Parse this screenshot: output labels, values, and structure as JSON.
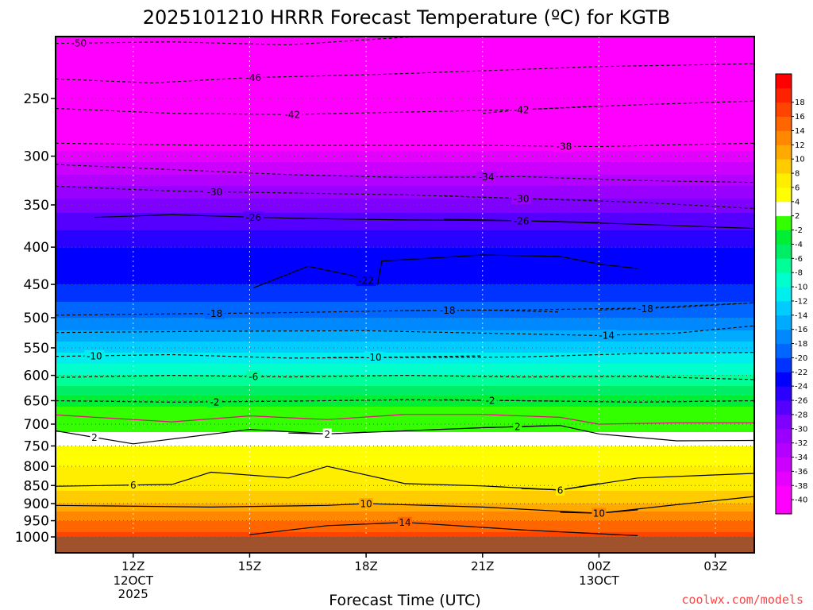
{
  "chart_data": {
    "type": "heatmap",
    "title": "2025101210 HRRR Forecast Temperature (ºC) for KGTB",
    "xlabel": "Forecast Time (UTC)",
    "ylabel": "",
    "credit": "coolwx.com/models",
    "y_scale": "log-pressure",
    "ylim": [
      1000,
      200
    ],
    "xlim_hours": [
      0,
      18
    ],
    "y_ticks": [
      250,
      300,
      350,
      400,
      450,
      500,
      550,
      600,
      650,
      700,
      750,
      800,
      850,
      900,
      950,
      1000
    ],
    "x_ticks": [
      {
        "hour": 2,
        "label": "12Z",
        "sub": [
          "12OCT",
          "2025"
        ]
      },
      {
        "hour": 5,
        "label": "15Z",
        "sub": []
      },
      {
        "hour": 8,
        "label": "18Z",
        "sub": []
      },
      {
        "hour": 11,
        "label": "21Z",
        "sub": []
      },
      {
        "hour": 14,
        "label": "00Z",
        "sub": [
          "13OCT"
        ]
      },
      {
        "hour": 17,
        "label": "03Z",
        "sub": []
      }
    ],
    "colorbar": {
      "levels": [
        -42,
        -40,
        -38,
        -36,
        -34,
        -32,
        -30,
        -28,
        -26,
        -24,
        -22,
        -20,
        -18,
        -16,
        -14,
        -12,
        -10,
        -8,
        -6,
        -4,
        -2,
        2,
        4,
        6,
        8,
        10,
        12,
        14,
        16,
        18,
        20
      ],
      "colors": [
        "#ff00ff",
        "#ff00ff",
        "#e600ff",
        "#cc00ff",
        "#b300ff",
        "#9900ff",
        "#8000ff",
        "#5500ff",
        "#2a00ff",
        "#0000ff",
        "#0033ff",
        "#0066ff",
        "#0088ff",
        "#00aaff",
        "#00ccff",
        "#00eeee",
        "#00ffcc",
        "#00ff99",
        "#00ee66",
        "#00ee33",
        "#33ff00",
        "#ffffff",
        "#ffff00",
        "#ffee00",
        "#ffcc00",
        "#ffaa00",
        "#ff8800",
        "#ff6600",
        "#ff4400",
        "#ff2200",
        "#ff0000"
      ],
      "tick_labels": [
        "18",
        "16",
        "14",
        "12",
        "10",
        "8",
        "6",
        "4",
        "2",
        "-2",
        "-4",
        "-6",
        "-8",
        "-10",
        "-12",
        "-14",
        "-16",
        "-18",
        "-20",
        "-22",
        "-24",
        "-26",
        "-28",
        "-30",
        "-32",
        "-34",
        "-36",
        "-38",
        "-40"
      ]
    },
    "temperature_profile": [
      {
        "hpa": 200,
        "temp_c": -58
      },
      {
        "hpa": 250,
        "temp_c": -47
      },
      {
        "hpa": 300,
        "temp_c": -37
      },
      {
        "hpa": 350,
        "temp_c": -29
      },
      {
        "hpa": 400,
        "temp_c": -24
      },
      {
        "hpa": 450,
        "temp_c": -22
      },
      {
        "hpa": 500,
        "temp_c": -18
      },
      {
        "hpa": 550,
        "temp_c": -13
      },
      {
        "hpa": 600,
        "temp_c": -8
      },
      {
        "hpa": 650,
        "temp_c": -3
      },
      {
        "hpa": 700,
        "temp_c": 1
      },
      {
        "hpa": 750,
        "temp_c": 4
      },
      {
        "hpa": 800,
        "temp_c": 6
      },
      {
        "hpa": 850,
        "temp_c": 7
      },
      {
        "hpa": 900,
        "temp_c": 10
      },
      {
        "hpa": 950,
        "temp_c": 14
      },
      {
        "hpa": 1000,
        "temp_c": 17
      }
    ],
    "isotherms": [
      {
        "temp_c": -50,
        "style": "dashed",
        "label_hour": 0.6,
        "points": [
          [
            0,
            210
          ],
          [
            3,
            209
          ],
          [
            6,
            211
          ],
          [
            9,
            206
          ],
          [
            12,
            203
          ],
          [
            15,
            200
          ],
          [
            18,
            202
          ]
        ]
      },
      {
        "temp_c": -46,
        "style": "dashed",
        "label_hour": 5.1,
        "points": [
          [
            0,
            235
          ],
          [
            2.5,
            238
          ],
          [
            5,
            234
          ],
          [
            8,
            232
          ],
          [
            11,
            229
          ],
          [
            14,
            226
          ],
          [
            18,
            224
          ]
        ]
      },
      {
        "temp_c": -42,
        "style": "dashed",
        "label_hour": 6.1,
        "points": [
          [
            0,
            258
          ],
          [
            3,
            262
          ],
          [
            6,
            263
          ],
          [
            9,
            261
          ],
          [
            12,
            259
          ],
          [
            15,
            255
          ],
          [
            18,
            252
          ]
        ]
      },
      {
        "temp_c": -42,
        "style": "dashed",
        "label_hour": 12.0,
        "points": [
          [
            11,
            262
          ],
          [
            12,
            259
          ],
          [
            14,
            256
          ]
        ]
      },
      {
        "temp_c": -38,
        "style": "dashed",
        "label_hour": 13.1,
        "points": [
          [
            0,
            288
          ],
          [
            4,
            290
          ],
          [
            8,
            290
          ],
          [
            11,
            290
          ],
          [
            14,
            291
          ],
          [
            18,
            288
          ]
        ]
      },
      {
        "temp_c": -34,
        "style": "dashed",
        "label_hour": 11.1,
        "points": [
          [
            0,
            308
          ],
          [
            3,
            313
          ],
          [
            6,
            318
          ],
          [
            9,
            321
          ],
          [
            12,
            320
          ],
          [
            15,
            324
          ],
          [
            18,
            326
          ]
        ]
      },
      {
        "temp_c": -30,
        "style": "dashed",
        "label_hour": 4.1,
        "points": [
          [
            0,
            330
          ],
          [
            3,
            335
          ],
          [
            6,
            337
          ],
          [
            9,
            339
          ],
          [
            12,
            343
          ],
          [
            15,
            347
          ],
          [
            18,
            354
          ]
        ]
      },
      {
        "temp_c": -30,
        "style": "dashed",
        "label_hour": 12.0,
        "points": [
          [
            10,
            340
          ],
          [
            12,
            343
          ],
          [
            14,
            345
          ]
        ]
      },
      {
        "temp_c": -26,
        "style": "solid",
        "label_hour": 5.1,
        "points": [
          [
            1,
            364
          ],
          [
            3,
            361
          ],
          [
            6,
            365
          ],
          [
            9,
            367
          ],
          [
            12,
            368
          ],
          [
            15,
            372
          ],
          [
            18,
            377
          ]
        ]
      },
      {
        "temp_c": -26,
        "style": "solid",
        "label_hour": 12.0,
        "points": [
          [
            10,
            366
          ],
          [
            12,
            368
          ],
          [
            14,
            370
          ]
        ]
      },
      {
        "temp_c": -22,
        "style": "solid",
        "label_hour": 8.0,
        "points": [
          [
            5.1,
            455
          ],
          [
            6.5,
            425
          ],
          [
            7.6,
            437
          ],
          [
            8.3,
            450
          ],
          [
            8.4,
            418
          ],
          [
            11,
            410
          ],
          [
            13,
            412
          ],
          [
            14,
            422
          ],
          [
            15,
            428
          ]
        ]
      },
      {
        "temp_c": -18,
        "style": "dashed",
        "label_hour": 4.1,
        "points": [
          [
            0,
            496
          ],
          [
            3,
            494
          ],
          [
            6,
            492
          ],
          [
            9,
            489
          ],
          [
            12,
            488
          ],
          [
            15,
            485
          ],
          [
            18,
            477
          ]
        ]
      },
      {
        "temp_c": -18,
        "style": "dashed",
        "label_hour": 10.1,
        "points": [
          [
            9,
            489
          ],
          [
            11,
            488
          ],
          [
            13,
            491
          ]
        ]
      },
      {
        "temp_c": -18,
        "style": "dashed",
        "label_hour": 15.2,
        "points": [
          [
            14,
            488
          ],
          [
            16,
            484
          ],
          [
            18,
            477
          ]
        ]
      },
      {
        "temp_c": -14,
        "style": "dashed",
        "label_hour": 14.2,
        "points": [
          [
            0,
            524
          ],
          [
            4,
            522
          ],
          [
            8,
            521
          ],
          [
            11,
            525
          ],
          [
            14,
            529
          ],
          [
            16,
            525
          ],
          [
            18,
            513
          ]
        ]
      },
      {
        "temp_c": -10,
        "style": "dashed",
        "label_hour": 1.0,
        "points": [
          [
            0,
            565
          ],
          [
            3,
            562
          ],
          [
            6,
            568
          ],
          [
            9,
            567
          ],
          [
            12,
            566
          ],
          [
            15,
            560
          ],
          [
            18,
            558
          ]
        ]
      },
      {
        "temp_c": -10,
        "style": "dashed",
        "label_hour": 8.2,
        "points": [
          [
            7,
            567
          ],
          [
            9,
            566
          ],
          [
            11,
            564
          ]
        ]
      },
      {
        "temp_c": -6,
        "style": "dashed",
        "label_hour": 5.1,
        "points": [
          [
            0,
            604
          ],
          [
            3,
            600
          ],
          [
            6,
            603
          ],
          [
            9,
            600
          ],
          [
            12,
            603
          ],
          [
            15,
            602
          ],
          [
            18,
            608
          ]
        ]
      },
      {
        "temp_c": -2,
        "style": "dashed",
        "label_hour": 4.1,
        "points": [
          [
            0,
            650
          ],
          [
            3,
            653
          ],
          [
            6,
            651
          ],
          [
            9,
            648
          ],
          [
            12,
            650
          ],
          [
            15,
            653
          ],
          [
            18,
            650
          ]
        ]
      },
      {
        "temp_c": -2,
        "style": "dashed",
        "label_hour": 11.2,
        "points": [
          [
            10,
            648
          ],
          [
            12,
            650
          ],
          [
            13,
            651
          ]
        ]
      },
      {
        "temp_c": 0,
        "style": "magenta",
        "label_hour": -1,
        "points": [
          [
            0,
            680
          ],
          [
            3,
            695
          ],
          [
            5,
            682
          ],
          [
            7,
            690
          ],
          [
            9,
            679
          ],
          [
            11,
            679
          ],
          [
            13,
            685
          ],
          [
            14,
            700
          ],
          [
            16,
            697
          ],
          [
            18,
            697
          ]
        ]
      },
      {
        "temp_c": 2,
        "style": "solid",
        "label_hour": 1.0,
        "points": [
          [
            0,
            715
          ],
          [
            2,
            745
          ],
          [
            5,
            712
          ],
          [
            7,
            722
          ],
          [
            9,
            715
          ],
          [
            11,
            708
          ],
          [
            13,
            703
          ],
          [
            14,
            722
          ],
          [
            16,
            738
          ],
          [
            18,
            737
          ]
        ]
      },
      {
        "temp_c": 2,
        "style": "solid",
        "label_hour": 7.0,
        "points": [
          [
            6,
            720
          ],
          [
            7,
            722
          ],
          [
            8,
            718
          ]
        ]
      },
      {
        "temp_c": 2,
        "style": "solid",
        "label_hour": 11.9,
        "points": [
          [
            11,
            708
          ],
          [
            12,
            705
          ],
          [
            13,
            703
          ]
        ]
      },
      {
        "temp_c": 6,
        "style": "solid",
        "label_hour": 2.0,
        "points": [
          [
            0,
            852
          ],
          [
            3,
            847
          ],
          [
            4,
            815
          ],
          [
            6,
            830
          ],
          [
            7,
            800
          ],
          [
            9,
            845
          ],
          [
            11,
            851
          ],
          [
            13,
            862
          ],
          [
            15,
            830
          ],
          [
            18,
            818
          ]
        ]
      },
      {
        "temp_c": 6,
        "style": "solid",
        "label_hour": 13.0,
        "points": [
          [
            12,
            858
          ],
          [
            13,
            862
          ],
          [
            14,
            845
          ]
        ]
      },
      {
        "temp_c": 10,
        "style": "solid",
        "label_hour": 8.0,
        "points": [
          [
            0,
            905
          ],
          [
            4,
            910
          ],
          [
            7,
            905
          ],
          [
            8,
            900
          ],
          [
            11,
            910
          ],
          [
            14,
            928
          ],
          [
            16,
            903
          ],
          [
            18,
            880
          ]
        ]
      },
      {
        "temp_c": 10,
        "style": "solid",
        "label_hour": 14.0,
        "points": [
          [
            13,
            925
          ],
          [
            14,
            928
          ],
          [
            15,
            918
          ]
        ]
      },
      {
        "temp_c": 14,
        "style": "solid",
        "label_hour": 9.0,
        "points": [
          [
            5,
            993
          ],
          [
            7,
            965
          ],
          [
            9,
            955
          ],
          [
            12,
            978
          ],
          [
            14,
            990
          ],
          [
            15,
            996
          ]
        ]
      }
    ]
  }
}
